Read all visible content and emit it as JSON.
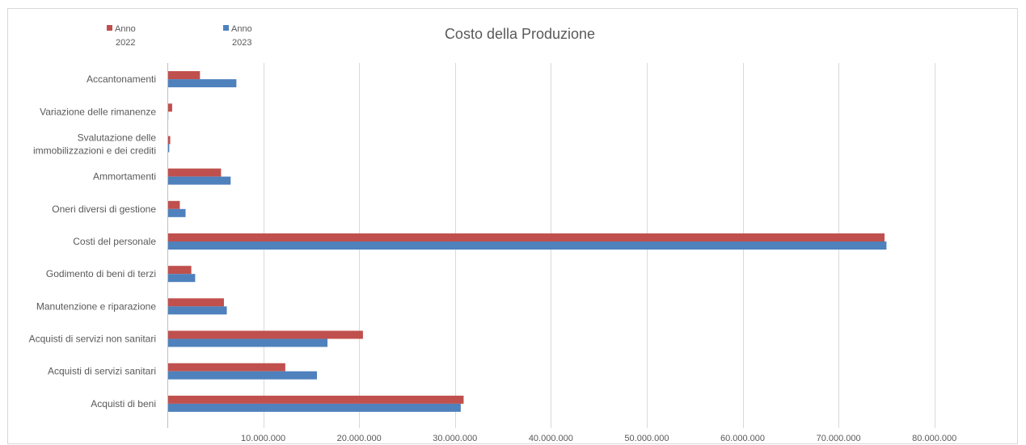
{
  "chart_data": {
    "type": "bar",
    "orientation": "horizontal",
    "title": "Costo della Produzione",
    "xlabel": "",
    "ylabel": "",
    "xlim": [
      0,
      85000000
    ],
    "grid": true,
    "legend_position": "top-left",
    "x_ticks": [
      0,
      10000000,
      20000000,
      30000000,
      40000000,
      50000000,
      60000000,
      70000000,
      80000000
    ],
    "x_tick_labels": [
      "",
      "10.000.000",
      "20.000.000",
      "30.000.000",
      "40.000.000",
      "50.000.000",
      "60.000.000",
      "70.000.000",
      "80.000.000"
    ],
    "categories": [
      [
        "Accantonamenti"
      ],
      [
        "Variazione delle rimanenze"
      ],
      [
        "Svalutazione delle",
        "immobilizzazioni e dei crediti"
      ],
      [
        "Ammortamenti"
      ],
      [
        "Oneri diversi di gestione"
      ],
      [
        "Costi del personale"
      ],
      [
        "Godimento di beni di terzi"
      ],
      [
        "Manutenzione e riparazione"
      ],
      [
        "Acquisti di servizi non sanitari"
      ],
      [
        "Acquisti di servizi sanitari"
      ],
      [
        "Acquisti di beni"
      ]
    ],
    "series": [
      {
        "name": [
          "Anno",
          "2022"
        ],
        "color": "#c0504d",
        "values": [
          3400000,
          500000,
          300000,
          5600000,
          1300000,
          74800000,
          2500000,
          5900000,
          20400000,
          12300000,
          30900000
        ]
      },
      {
        "name": [
          "Anno",
          "2023"
        ],
        "color": "#4f81bd",
        "values": [
          7200000,
          100000,
          200000,
          6600000,
          1900000,
          75000000,
          2900000,
          6200000,
          16700000,
          15600000,
          30600000
        ]
      }
    ]
  }
}
